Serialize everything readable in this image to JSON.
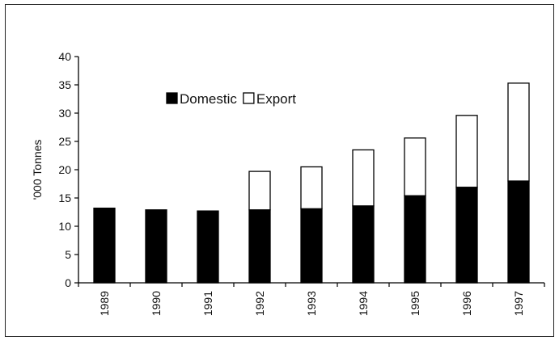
{
  "chart_data": {
    "type": "bar",
    "stacked": true,
    "ylabel": "'000 Tonnes",
    "xlabel": "",
    "ylim": [
      0,
      40
    ],
    "yticks": [
      0,
      5,
      10,
      15,
      20,
      25,
      30,
      35,
      40
    ],
    "categories": [
      "1989",
      "1990",
      "1991",
      "1992",
      "1993",
      "1994",
      "1995",
      "1996",
      "1997"
    ],
    "series": [
      {
        "name": "Domestic",
        "values": [
          13.2,
          12.9,
          12.7,
          12.9,
          13.1,
          13.6,
          15.4,
          16.9,
          18.0
        ],
        "color": "#000000"
      },
      {
        "name": "Export",
        "values": [
          0,
          0,
          0,
          6.8,
          7.4,
          9.9,
          10.2,
          12.7,
          17.3
        ],
        "color": "#ffffff"
      }
    ],
    "grid": false,
    "legend": "top-center"
  }
}
